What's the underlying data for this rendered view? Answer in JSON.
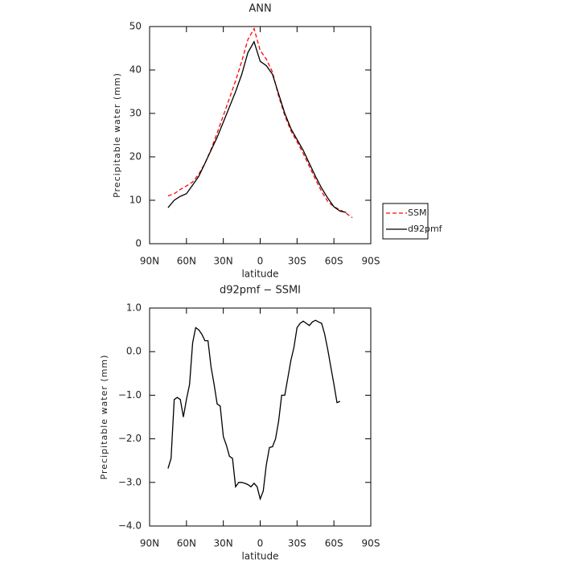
{
  "chart_data": [
    {
      "type": "line",
      "title": "ANN",
      "xlabel": "latitude",
      "ylabel": "Precipitable water (mm)",
      "x": [
        75,
        70,
        65,
        60,
        55,
        50,
        45,
        40,
        35,
        30,
        25,
        20,
        15,
        10,
        5,
        0,
        -5,
        -10,
        -15,
        -20,
        -25,
        -30,
        -35,
        -40,
        -45,
        -50,
        -55,
        -60,
        -65,
        -70,
        -75
      ],
      "series": [
        {
          "name": "SSMI",
          "color": "#ff0000",
          "style": "dashed",
          "values": [
            11,
            11.5,
            12.5,
            13.3,
            14.2,
            16,
            18.5,
            21.7,
            25.5,
            29.5,
            33.5,
            37.5,
            42,
            47,
            49.5,
            44.5,
            42.5,
            39.5,
            34,
            29.5,
            26,
            23.5,
            20.8,
            17.8,
            14.8,
            12,
            9.7,
            8.5,
            7.8,
            7,
            6
          ]
        },
        {
          "name": "d92pmf",
          "color": "#000000",
          "style": "solid",
          "values": [
            8.3,
            10,
            10.9,
            11.5,
            13.5,
            15.5,
            18.5,
            21.5,
            24.5,
            28,
            31.5,
            35,
            39,
            44,
            46.5,
            42,
            41,
            39,
            34.5,
            30,
            26.5,
            24,
            21.5,
            18.5,
            15.5,
            12.8,
            10.5,
            8.5,
            7.5,
            7.2,
            null
          ]
        }
      ],
      "xlim": [
        90,
        -90
      ],
      "xticks": [
        {
          "value": 90,
          "label": "90N"
        },
        {
          "value": 60,
          "label": "60N"
        },
        {
          "value": 30,
          "label": "30N"
        },
        0,
        {
          "value": -30,
          "label": "30S"
        },
        {
          "value": -60,
          "label": "60S"
        },
        {
          "value": -90,
          "label": "90S"
        }
      ],
      "ylim": [
        0,
        50
      ],
      "yticks": [
        0,
        10,
        20,
        30,
        40,
        50
      ],
      "legend": "right"
    },
    {
      "type": "line",
      "title": "d92pmf − SSMI",
      "xlabel": "latitude",
      "ylabel": "Precipitable water (mm)",
      "x": [
        75,
        72.5,
        70,
        67.5,
        65,
        62.5,
        60,
        57.5,
        55,
        52.5,
        50,
        47.5,
        45,
        42.5,
        40,
        37.5,
        35,
        32.5,
        30,
        27.5,
        25,
        22.5,
        20,
        17.5,
        15,
        12.5,
        10,
        7.5,
        5,
        2.5,
        0,
        -2.5,
        -5,
        -7.5,
        -10,
        -12.5,
        -15,
        -17.5,
        -20,
        -22.5,
        -25,
        -27.5,
        -30,
        -32.5,
        -35,
        -37.5,
        -40,
        -42.5,
        -45,
        -47.5,
        -50,
        -52.5,
        -55,
        -57.5,
        -60,
        -62.5,
        -65
      ],
      "color": "#000000",
      "values": [
        -2.68,
        -2.45,
        -1.1,
        -1.05,
        -1.1,
        -1.5,
        -1.1,
        -0.75,
        0.2,
        0.55,
        0.5,
        0.4,
        0.25,
        0.25,
        -0.35,
        -0.75,
        -1.2,
        -1.25,
        -1.95,
        -2.15,
        -2.4,
        -2.45,
        -3.1,
        -3.0,
        -3.0,
        -3.02,
        -3.05,
        -3.1,
        -3.02,
        -3.1,
        -3.38,
        -3.2,
        -2.6,
        -2.2,
        -2.18,
        -2.0,
        -1.6,
        -1.0,
        -1.0,
        -0.6,
        -0.2,
        0.1,
        0.55,
        0.65,
        0.7,
        0.65,
        0.6,
        0.68,
        0.72,
        0.68,
        0.65,
        0.4,
        0.05,
        -0.35,
        -0.75,
        -1.17,
        -1.14
      ],
      "xlim": [
        90,
        -90
      ],
      "xticks": [
        {
          "value": 90,
          "label": "90N"
        },
        {
          "value": 60,
          "label": "60N"
        },
        {
          "value": 30,
          "label": "30N"
        },
        0,
        {
          "value": -30,
          "label": "30S"
        },
        {
          "value": -60,
          "label": "60S"
        },
        {
          "value": -90,
          "label": "90S"
        }
      ],
      "ylim": [
        -4,
        1
      ],
      "yticks": [
        {
          "value": -4,
          "label": "−4.0"
        },
        {
          "value": -3,
          "label": "−3.0"
        },
        {
          "value": -2,
          "label": "−2.0"
        },
        {
          "value": -1,
          "label": "−1.0"
        },
        {
          "value": 0,
          "label": "0.0"
        },
        {
          "value": 1,
          "label": "1.0"
        }
      ]
    }
  ]
}
